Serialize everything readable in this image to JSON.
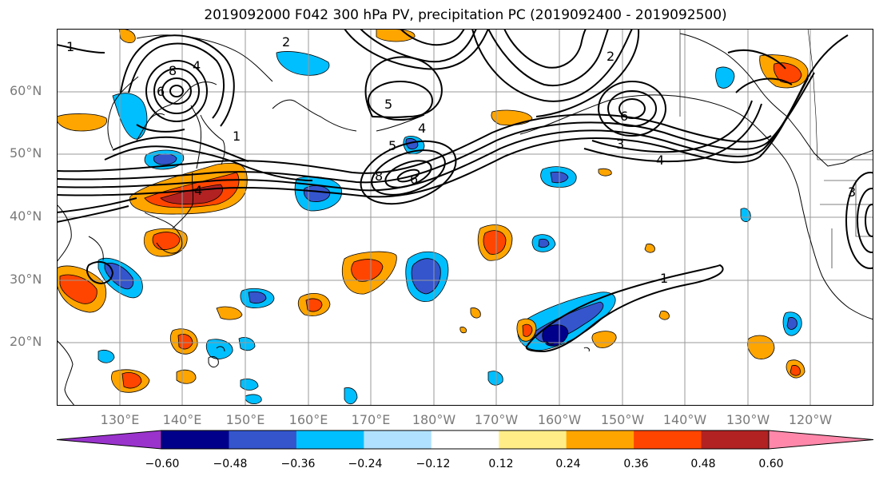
{
  "title": "2019092000 F042 300 hPa PV, precipitation PC (2019092400 - 2019092500)",
  "lat_labels": [
    "60°N",
    "50°N",
    "40°N",
    "30°N",
    "20°N"
  ],
  "lon_labels": [
    "130°E",
    "140°E",
    "150°E",
    "160°E",
    "170°E",
    "180°W",
    "170°W",
    "160°W",
    "150°W",
    "140°W",
    "130°W",
    "120°W"
  ],
  "colorbar": {
    "colors": [
      "#9933cc",
      "#00008b",
      "#3455cc",
      "#00bfff",
      "#b0e2ff",
      "#ffffff",
      "#ffee88",
      "#ffa500",
      "#ff4500",
      "#b22222",
      "#ff88aa"
    ],
    "tick_labels": [
      "−0.60",
      "−0.48",
      "−0.36",
      "−0.24",
      "−0.12",
      "0.12",
      "0.24",
      "0.36",
      "0.48",
      "0.60"
    ]
  },
  "contour_labels": [
    "1",
    "2",
    "4",
    "6",
    "8",
    "5",
    "3",
    "4",
    "1",
    "2",
    "6",
    "5",
    "4",
    "8",
    "6",
    "3",
    "4",
    "1"
  ]
}
